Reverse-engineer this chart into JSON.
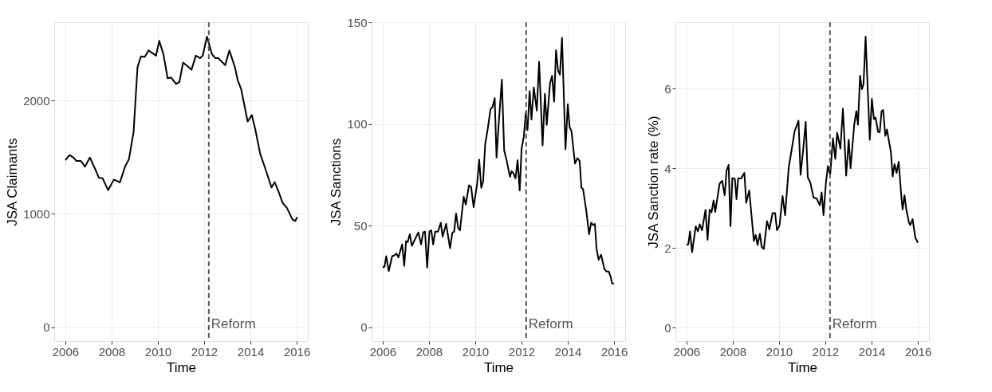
{
  "chart_data": [
    {
      "type": "line",
      "xlabel": "Time",
      "ylabel": "JSA Claimants",
      "xlim": [
        2005.52,
        2016.48
      ],
      "xticks": [
        2006,
        2008,
        2010,
        2012,
        2014,
        2016
      ],
      "ylim": [
        -121,
        2690
      ],
      "yticks": [
        0,
        1000,
        2000
      ],
      "grid": true,
      "x": [
        2006.0,
        2006.18,
        2006.36,
        2006.48,
        2006.67,
        2006.85,
        2007.06,
        2007.27,
        2007.45,
        2007.61,
        2007.85,
        2008.1,
        2008.36,
        2008.58,
        2008.75,
        2008.95,
        2009.12,
        2009.27,
        2009.43,
        2009.6,
        2009.92,
        2010.06,
        2010.24,
        2010.42,
        2010.57,
        2010.79,
        2010.93,
        2011.09,
        2011.33,
        2011.45,
        2011.64,
        2011.82,
        2011.94,
        2012.12,
        2012.34,
        2012.48,
        2012.61,
        2012.91,
        2013.09,
        2013.33,
        2013.45,
        2013.6,
        2013.88,
        2014.06,
        2014.21,
        2014.42,
        2014.67,
        2014.91,
        2015.05,
        2015.21,
        2015.39,
        2015.58,
        2015.82,
        2015.94,
        2016.02
      ],
      "series": [
        {
          "color": "#000000",
          "values": [
            1474,
            1519,
            1496,
            1467,
            1467,
            1417,
            1497,
            1405,
            1319,
            1314,
            1210,
            1303,
            1278,
            1417,
            1483,
            1724,
            2294,
            2390,
            2385,
            2442,
            2396,
            2526,
            2408,
            2196,
            2203,
            2146,
            2164,
            2335,
            2294,
            2271,
            2396,
            2374,
            2396,
            2563,
            2408,
            2374,
            2374,
            2312,
            2442,
            2294,
            2180,
            2100,
            1815,
            1872,
            1747,
            1531,
            1383,
            1234,
            1280,
            1200,
            1098,
            1052,
            950,
            938,
            973
          ]
        }
      ],
      "ref_lines": [
        {
          "axis": "x",
          "value": 2012.2,
          "label": "Reform",
          "color": "#555555",
          "line_style": "dashed"
        }
      ]
    },
    {
      "type": "line",
      "xlabel": "Time",
      "ylabel": "JSA Sanctions",
      "xlim": [
        2005.52,
        2016.48
      ],
      "xticks": [
        2006,
        2008,
        2010,
        2012,
        2014,
        2016
      ],
      "ylim": [
        -6.7,
        150
      ],
      "yticks": [
        0,
        50,
        100,
        150
      ],
      "grid": true,
      "x": [
        2006.0,
        2006.08,
        2006.15,
        2006.26,
        2006.41,
        2006.49,
        2006.59,
        2006.68,
        2006.84,
        2006.93,
        2007.01,
        2007.08,
        2007.17,
        2007.26,
        2007.54,
        2007.66,
        2007.75,
        2007.83,
        2007.92,
        2008.02,
        2008.1,
        2008.18,
        2008.27,
        2008.39,
        2008.51,
        2008.59,
        2008.74,
        2008.91,
        2009.01,
        2009.09,
        2009.17,
        2009.26,
        2009.34,
        2009.5,
        2009.59,
        2009.73,
        2009.82,
        2009.93,
        2010.08,
        2010.17,
        2010.26,
        2010.34,
        2010.43,
        2010.55,
        2010.66,
        2010.75,
        2010.84,
        2010.92,
        2011.01,
        2011.15,
        2011.25,
        2011.36,
        2011.5,
        2011.57,
        2011.65,
        2011.74,
        2011.83,
        2011.92,
        2012.0,
        2012.1,
        2012.18,
        2012.26,
        2012.35,
        2012.43,
        2012.53,
        2012.66,
        2012.76,
        2012.91,
        2013.01,
        2013.09,
        2013.23,
        2013.32,
        2013.41,
        2013.49,
        2013.58,
        2013.66,
        2013.75,
        2013.9,
        2014.0,
        2014.08,
        2014.16,
        2014.31,
        2014.42,
        2014.51,
        2014.59,
        2014.66,
        2014.8,
        2014.92,
        2015.01,
        2015.09,
        2015.17,
        2015.24,
        2015.33,
        2015.44,
        2015.58,
        2015.67,
        2015.77,
        2015.85,
        2015.91,
        2015.99
      ],
      "series": [
        {
          "color": "#000000",
          "values": [
            29.4,
            30,
            35,
            27.7,
            35,
            35.3,
            36.3,
            34.4,
            40.8,
            30.3,
            42.4,
            42,
            45.8,
            40.1,
            46.7,
            40.8,
            46.7,
            47.1,
            29.4,
            47.1,
            47.7,
            40.8,
            47.1,
            47.1,
            51.5,
            44.6,
            50.9,
            38.9,
            46.5,
            47.1,
            56,
            49,
            47.7,
            64.2,
            60.4,
            69.9,
            69.2,
            59.1,
            70.5,
            82.5,
            68.6,
            71.8,
            90.1,
            98.4,
            107.2,
            108.5,
            112.7,
            83.5,
            99.6,
            121.8,
            87,
            81.9,
            74,
            76.8,
            75.8,
            73.3,
            82.2,
            67.3,
            87.6,
            93.9,
            105.3,
            97.1,
            116.1,
            102.2,
            118,
            106.6,
            130.6,
            89.5,
            114.8,
            99.6,
            119.9,
            123.7,
            111,
            136.3,
            126.2,
            124.3,
            142.4,
            87.6,
            109.7,
            98.4,
            96.5,
            80.6,
            83.2,
            81.9,
            68.6,
            68,
            57.2,
            45.8,
            51.5,
            50.3,
            50.9,
            38.9,
            33.2,
            35.7,
            28.7,
            27.5,
            27.5,
            24.9,
            21.8,
            21.4
          ]
        }
      ],
      "ref_lines": [
        {
          "axis": "x",
          "value": 2012.2,
          "label": "Reform",
          "color": "#555555",
          "line_style": "dashed"
        }
      ]
    },
    {
      "type": "line",
      "xlabel": "Time",
      "ylabel": "JSA Sanction rate (%)",
      "xlim": [
        2005.52,
        2016.48
      ],
      "xticks": [
        2006,
        2008,
        2010,
        2012,
        2014,
        2016
      ],
      "ylim": [
        -0.34,
        7.66
      ],
      "yticks": [
        0,
        2,
        4,
        6
      ],
      "grid": true,
      "x": [
        2006.0,
        2006.08,
        2006.15,
        2006.24,
        2006.4,
        2006.49,
        2006.57,
        2006.67,
        2006.82,
        2006.91,
        2007.0,
        2007.08,
        2007.17,
        2007.24,
        2007.43,
        2007.54,
        2007.65,
        2007.73,
        2007.82,
        2007.9,
        2007.98,
        2008.09,
        2008.16,
        2008.23,
        2008.36,
        2008.5,
        2008.58,
        2008.71,
        2008.91,
        2008.99,
        2009.07,
        2009.17,
        2009.25,
        2009.34,
        2009.48,
        2009.58,
        2009.72,
        2009.83,
        2009.91,
        2010.02,
        2010.15,
        2010.26,
        2010.42,
        2010.53,
        2010.67,
        2010.84,
        2010.93,
        2011.04,
        2011.15,
        2011.24,
        2011.35,
        2011.49,
        2011.62,
        2011.76,
        2011.84,
        2011.92,
        2012.02,
        2012.11,
        2012.21,
        2012.33,
        2012.43,
        2012.51,
        2012.65,
        2012.76,
        2012.9,
        2013.01,
        2013.09,
        2013.25,
        2013.34,
        2013.41,
        2013.5,
        2013.58,
        2013.65,
        2013.74,
        2013.92,
        2014.01,
        2014.1,
        2014.17,
        2014.28,
        2014.35,
        2014.43,
        2014.5,
        2014.59,
        2014.66,
        2014.83,
        2014.91,
        2014.99,
        2015.08,
        2015.17,
        2015.28,
        2015.34,
        2015.42,
        2015.5,
        2015.61,
        2015.67,
        2015.77,
        2015.89,
        2016.0
      ],
      "series": [
        {
          "color": "#000000",
          "values": [
            2.07,
            2.09,
            2.41,
            1.89,
            2.54,
            2.41,
            2.59,
            2.44,
            2.95,
            2.2,
            2.96,
            2.89,
            3.19,
            2.9,
            3.61,
            3.68,
            3.32,
            3.94,
            4.08,
            2.54,
            3.75,
            3.73,
            3.22,
            3.74,
            3.74,
            3.88,
            3.13,
            3.44,
            2.17,
            2.32,
            2.07,
            2.35,
            2.02,
            1.97,
            2.67,
            2.46,
            2.87,
            2.87,
            2.44,
            2.56,
            3.3,
            2.82,
            4.03,
            4.41,
            4.92,
            5.19,
            3.83,
            4.45,
            5.16,
            3.77,
            3.64,
            3.26,
            3.24,
            3.07,
            3.39,
            2.82,
            3.6,
            4.05,
            3.84,
            4.75,
            4.23,
            4.89,
            4.49,
            5.49,
            3.81,
            4.71,
            4.0,
            5.1,
            5.43,
            5.09,
            6.32,
            5.98,
            6.11,
            7.3,
            4.71,
            5.74,
            5.23,
            5.27,
            4.91,
            4.9,
            5.43,
            5.46,
            4.81,
            4.97,
            4.42,
            3.79,
            4.1,
            3.88,
            4.16,
            3.32,
            2.96,
            3.32,
            2.96,
            2.64,
            2.57,
            2.72,
            2.25,
            2.13
          ]
        }
      ],
      "ref_lines": [
        {
          "axis": "x",
          "value": 2012.2,
          "label": "Reform",
          "color": "#555555",
          "line_style": "dashed"
        }
      ]
    }
  ]
}
